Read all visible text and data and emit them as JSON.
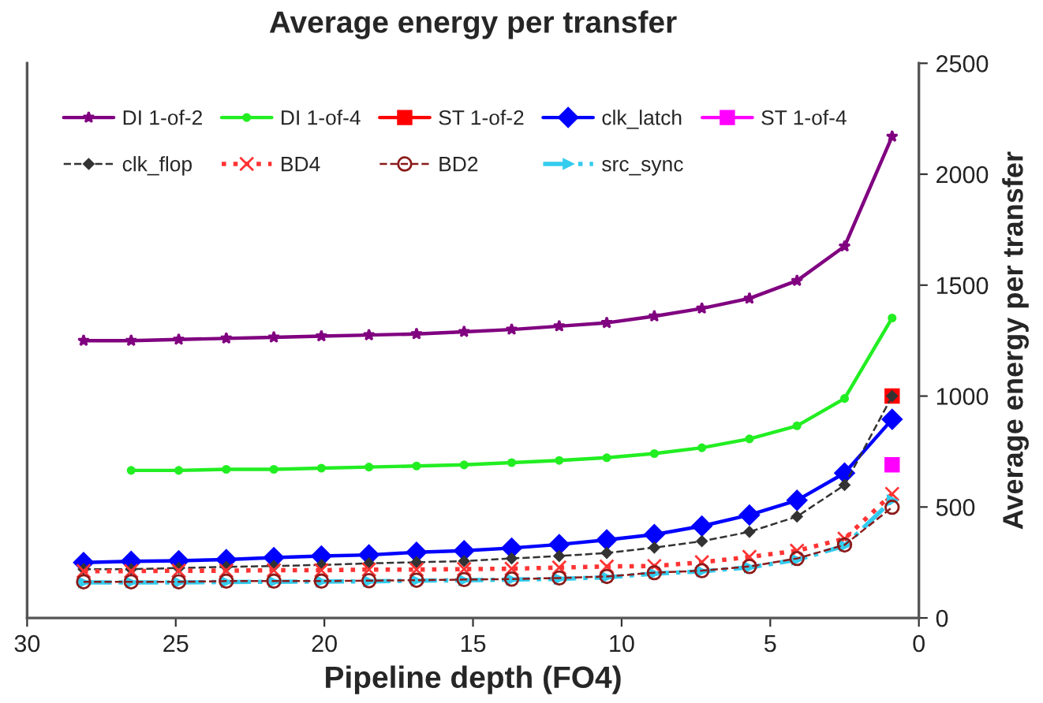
{
  "chart_data": {
    "type": "line",
    "title": "Average energy per transfer",
    "xlabel": "Pipeline depth (FO4)",
    "ylabel": "Average energy per transfer",
    "xlim": [
      30,
      0
    ],
    "xticks": [
      30,
      25,
      20,
      15,
      10,
      5,
      0
    ],
    "ylim": [
      0,
      2500
    ],
    "yticks": [
      0,
      500,
      1000,
      1500,
      2000,
      2500
    ],
    "grid": false,
    "legend": "top left",
    "series": [
      {
        "name": "DI 1-of-2",
        "color": "#800080",
        "marker": "star",
        "line_style": "solid",
        "x": [
          28.1,
          26.5,
          24.9,
          23.3,
          21.7,
          20.1,
          18.5,
          16.9,
          15.3,
          13.7,
          12.1,
          10.5,
          8.9,
          7.3,
          5.7,
          4.1,
          2.5,
          0.9
        ],
        "values": [
          1250,
          1250,
          1255,
          1260,
          1265,
          1270,
          1275,
          1280,
          1290,
          1300,
          1315,
          1330,
          1360,
          1395,
          1440,
          1520,
          1675,
          2170
        ]
      },
      {
        "name": "DI 1-of-4",
        "color": "#22ee22",
        "marker": "circle",
        "line_style": "solid",
        "x": [
          26.5,
          24.9,
          23.3,
          21.7,
          20.1,
          18.5,
          16.9,
          15.3,
          13.7,
          12.1,
          10.5,
          8.9,
          7.3,
          5.7,
          4.1,
          2.5,
          0.9
        ],
        "values": [
          665,
          665,
          670,
          670,
          675,
          680,
          685,
          690,
          700,
          710,
          722,
          741,
          767,
          807,
          866,
          989,
          1352
        ]
      },
      {
        "name": "ST 1-of-2",
        "color": "#ff0000",
        "marker": "square",
        "line_style": "solid",
        "x": [
          0.9
        ],
        "values": [
          1000
        ]
      },
      {
        "name": "clk_latch",
        "color": "#0000ff",
        "marker": "diamond",
        "line_style": "solid",
        "x": [
          28.1,
          26.5,
          24.9,
          23.3,
          21.7,
          20.1,
          18.5,
          16.9,
          15.3,
          13.7,
          12.1,
          10.5,
          8.9,
          7.3,
          5.7,
          4.1,
          2.5,
          0.9
        ],
        "values": [
          250,
          255,
          258,
          263,
          272,
          279,
          284,
          296,
          303,
          315,
          331,
          352,
          376,
          414,
          464,
          530,
          653,
          895
        ]
      },
      {
        "name": "ST 1-of-4",
        "color": "#ff00ff",
        "marker": "square",
        "line_style": "solid",
        "x": [
          0.9
        ],
        "values": [
          690
        ]
      },
      {
        "name": "clk_flop",
        "color": "#333333",
        "marker": "diamond",
        "line_style": "dashed",
        "x": [
          28.1,
          26.5,
          24.9,
          23.3,
          21.7,
          20.1,
          18.5,
          16.9,
          15.3,
          13.7,
          12.1,
          10.5,
          8.9,
          7.3,
          5.7,
          4.1,
          2.5,
          0.9
        ],
        "values": [
          220,
          220,
          225,
          230,
          234,
          239,
          246,
          251,
          256,
          268,
          279,
          293,
          317,
          346,
          388,
          457,
          599,
          1000
        ]
      },
      {
        "name": "BD4",
        "color": "#ff3333",
        "marker": "cross",
        "line_style": "dotted",
        "x": [
          28.1,
          26.5,
          24.9,
          23.3,
          21.7,
          20.1,
          18.5,
          16.9,
          15.3,
          13.7,
          12.1,
          10.5,
          8.9,
          7.3,
          5.7,
          4.1,
          2.5,
          0.9
        ],
        "values": [
          211,
          211,
          213,
          213,
          215,
          215,
          218,
          218,
          220,
          222,
          227,
          232,
          234,
          251,
          275,
          303,
          357,
          559
        ]
      },
      {
        "name": "BD2",
        "color": "#8b1a1a",
        "marker": "circle",
        "line_style": "dashed",
        "x": [
          28.1,
          26.5,
          24.9,
          23.3,
          21.7,
          20.1,
          18.5,
          16.9,
          15.3,
          13.7,
          12.1,
          10.5,
          8.9,
          7.3,
          5.7,
          4.1,
          2.5,
          0.9
        ],
        "values": [
          163,
          163,
          163,
          166,
          166,
          166,
          168,
          170,
          173,
          175,
          180,
          187,
          204,
          213,
          232,
          268,
          329,
          499
        ]
      },
      {
        "name": "src_sync",
        "color": "#33ccee",
        "marker": "triangle",
        "line_style": "dashdot",
        "x": [
          28.1,
          26.5,
          24.9,
          23.3,
          21.7,
          20.1,
          18.5,
          16.9,
          15.3,
          13.7,
          12.1,
          10.5,
          8.9,
          7.3,
          5.7,
          4.1,
          2.5,
          0.9
        ],
        "values": [
          160,
          160,
          160,
          162,
          163,
          164,
          165,
          168,
          170,
          173,
          176,
          183,
          200,
          210,
          228,
          262,
          325,
          530
        ]
      }
    ]
  }
}
